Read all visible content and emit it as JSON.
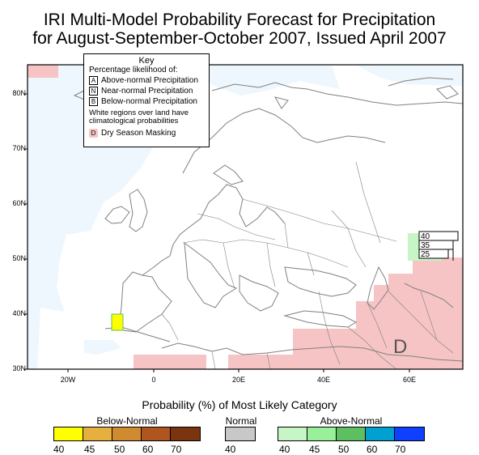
{
  "title": {
    "line1": "IRI Multi-Model Probability Forecast for Precipitation",
    "line2": "for August-September-October 2007, Issued April 2007"
  },
  "key": {
    "heading": "Key",
    "subheading": "Percentage likelihood of:",
    "entries": [
      {
        "code": "A",
        "label": "Above-normal Precipitation"
      },
      {
        "code": "N",
        "label": "Near-normal Precipitation"
      },
      {
        "code": "B",
        "label": "Below-normal Precipitation"
      }
    ],
    "white_note": "White regions over land have climatological probabilities",
    "dry_code": "D",
    "dry_label": "Dry Season Masking"
  },
  "map": {
    "lat_labels": [
      "80N",
      "70N",
      "60N",
      "50N",
      "40N",
      "30N"
    ],
    "lon_labels": [
      "20W",
      "0",
      "20E",
      "40E",
      "60E"
    ],
    "inset_values": [
      "40",
      "35",
      "25"
    ],
    "dry_marker": "D",
    "colors": {
      "ocean": "#eef7fd",
      "dry_mask": "#f6c4c4",
      "coast": "#808080",
      "border": "#808080"
    }
  },
  "legend": {
    "title": "Probability (%) of Most Likely Category",
    "below": {
      "label": "Below-Normal",
      "colors": [
        "#ffff00",
        "#e6b040",
        "#d08a30",
        "#b05520",
        "#7a3410"
      ],
      "ticks": [
        "40",
        "45",
        "50",
        "60",
        "70"
      ]
    },
    "normal": {
      "label": "Normal",
      "color": "#c8c8c8",
      "ticks": [
        "40"
      ]
    },
    "above": {
      "label": "Above-Normal",
      "colors": [
        "#c6f5c6",
        "#98f098",
        "#5cc060",
        "#00a0d0",
        "#1040ff"
      ],
      "ticks": [
        "40",
        "45",
        "50",
        "60",
        "70"
      ]
    }
  }
}
